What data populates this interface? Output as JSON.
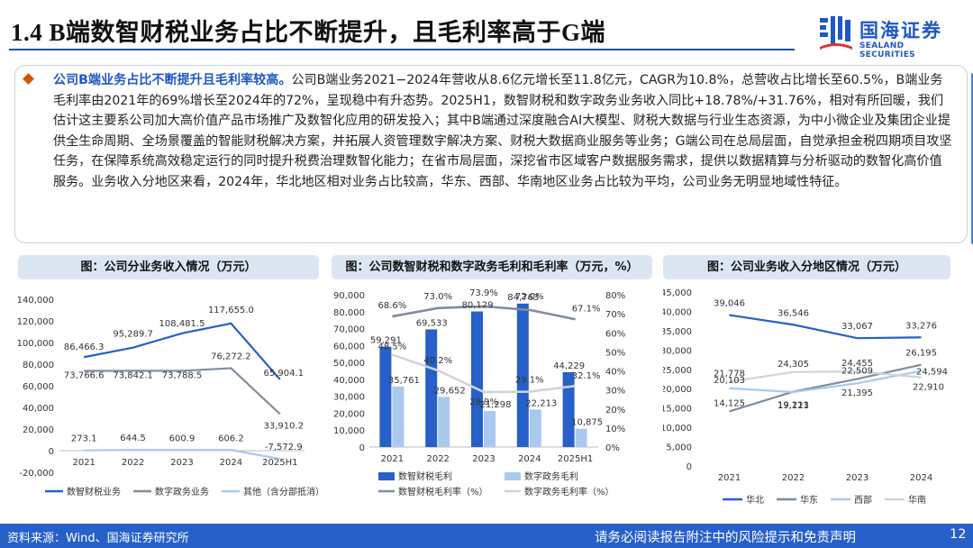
{
  "header": {
    "title": "1.4 B端数智财税业务占比不断提升，且毛利率高于G端",
    "logo_cn": "国海证券",
    "logo_en": "SEALAND SECURITIES"
  },
  "summary": {
    "highlight": "公司B端业务占比不断提升且毛利率较高。",
    "body": "公司B端业务2021−2024年营收从8.6亿元增长至11.8亿元，CAGR为10.8%，总营收占比增长至60.5%，B端业务毛利率由2021年的69%增长至2024年的72%，呈现稳中有升态势。2025H1，数智财税和数字政务业务收入同比+18.78%/+31.76%，相对有所回暖，我们估计这主要系公司加大高价值产品市场推广及数智化应用的研发投入；其中B端通过深度融合AI大模型、财税大数据与行业生态资源，为中小微企业及集团企业提供全生命周期、全场景覆盖的智能财税解决方案，并拓展人资管理数字解决方案、财税大数据商业服务等业务；G端公司在总局层面，自觉承担金税四期项目攻坚任务，在保障系统高效稳定运行的同时提升税费治理数智化能力；在省市局层面，深挖省市区域客户数据服务需求，提供以数据精算与分析驱动的数智化高价值服务。业务收入分地区来看，2024年，华北地区相对业务占比较高，华东、西部、华南地区业务占比较为平均，公司业务无明显地域性特征。"
  },
  "panels": {
    "left_title": "图：公司分业务收入情况（万元）",
    "mid_title": "图：公司数智财税和数字政务毛利和毛利率（万元，%）",
    "right_title": "图：公司业务收入分地区情况（万元）"
  },
  "footer": {
    "source": "资料来源：Wind、国海证券研究所",
    "disclaimer": "请务必阅读报告附注中的风险提示和免责声明",
    "page": "12"
  },
  "colors": {
    "primary": "#2660c8",
    "light": "#a9c9ef",
    "grey": "#7f8d9e",
    "lightgrey": "#cfd4da",
    "band": "#dce6f3"
  },
  "chart_data": [
    {
      "type": "line",
      "categories": [
        "2021",
        "2022",
        "2023",
        "2024",
        "2025H1"
      ],
      "ylim": [
        -20000,
        140000
      ],
      "yticks": [
        "-20,000",
        "0",
        "20,000",
        "40,000",
        "60,000",
        "80,000",
        "100,000",
        "120,000",
        "140,000"
      ],
      "series": [
        {
          "name": "数智财税业务",
          "values": [
            86466.3,
            95289.7,
            108481.5,
            117655.0,
            65904.1
          ],
          "labels": [
            "86,466.3",
            "95,289.7",
            "108,481.5",
            "117,655.0",
            "65,904.1"
          ]
        },
        {
          "name": "数字政务业务",
          "values": [
            73766.6,
            73842.1,
            73788.5,
            76272.2,
            33910.2
          ],
          "labels": [
            "73,766.6",
            "73,842.1",
            "73,788.5",
            "76,272.2",
            "33,910.2"
          ]
        },
        {
          "name": "其他（含分部抵消）",
          "values": [
            273.1,
            644.5,
            600.9,
            606.2,
            -7572.9
          ],
          "labels": [
            "273.1",
            "644.5",
            "600.9",
            "606.2",
            "-7,572.9"
          ]
        }
      ]
    },
    {
      "type": "bar",
      "categories": [
        "2021",
        "2022",
        "2023",
        "2024",
        "2025H1"
      ],
      "ylim": [
        0,
        90000
      ],
      "y2lim": [
        0,
        80
      ],
      "yticks": [
        "0",
        "10,000",
        "20,000",
        "30,000",
        "40,000",
        "50,000",
        "60,000",
        "70,000",
        "80,000",
        "90,000"
      ],
      "y2ticks": [
        "0%",
        "10%",
        "20%",
        "30%",
        "40%",
        "50%",
        "60%",
        "70%",
        "80%"
      ],
      "bars": [
        {
          "name": "数智财税毛利",
          "values": [
            59291,
            69533,
            80129,
            84763,
            44229
          ],
          "labels": [
            "59,291",
            "69,533",
            "80,129",
            "84,763",
            "44,229"
          ]
        },
        {
          "name": "数字政务毛利",
          "values": [
            35761,
            29652,
            21298,
            22213,
            10875
          ],
          "labels": [
            "35,761",
            "29,652",
            "21,298",
            "22,213",
            "10,875"
          ]
        }
      ],
      "lines": [
        {
          "name": "数智财税毛利率（%）",
          "values": [
            68.6,
            73.0,
            73.9,
            72.0,
            67.1
          ],
          "labels": [
            "68.6%",
            "73.0%",
            "73.9%",
            "72.0%",
            "67.1%"
          ]
        },
        {
          "name": "数字政务毛利率（%）",
          "values": [
            48.5,
            40.2,
            28.9,
            29.1,
            32.1
          ],
          "labels": [
            "48.5%",
            "40.2%",
            "28.9%",
            "29.1%",
            "32.1%"
          ]
        }
      ]
    },
    {
      "type": "line",
      "categories": [
        "2021",
        "2022",
        "2023",
        "2024"
      ],
      "ylim": [
        0,
        45000
      ],
      "yticks": [
        "0",
        "5,000",
        "10,000",
        "15,000",
        "20,000",
        "25,000",
        "30,000",
        "35,000",
        "40,000",
        "45,000"
      ],
      "series": [
        {
          "name": "华北",
          "values": [
            39046,
            36546,
            33067,
            33276
          ],
          "labels": [
            "39,046",
            "36,546",
            "33,067",
            "33,276"
          ]
        },
        {
          "name": "华东",
          "values": [
            14125,
            19213,
            22509,
            26195
          ],
          "labels": [
            "14,125",
            "19,213",
            "22,509",
            "26,195"
          ]
        },
        {
          "name": "西部",
          "values": [
            20103,
            19121,
            21395,
            24594
          ],
          "labels": [
            "20,103",
            "19,121",
            "21,395",
            "24,594"
          ]
        },
        {
          "name": "华南",
          "values": [
            21778,
            24305,
            24455,
            22910
          ],
          "labels": [
            "21,778",
            "24,305",
            "24,455",
            "22,910"
          ]
        }
      ]
    }
  ]
}
